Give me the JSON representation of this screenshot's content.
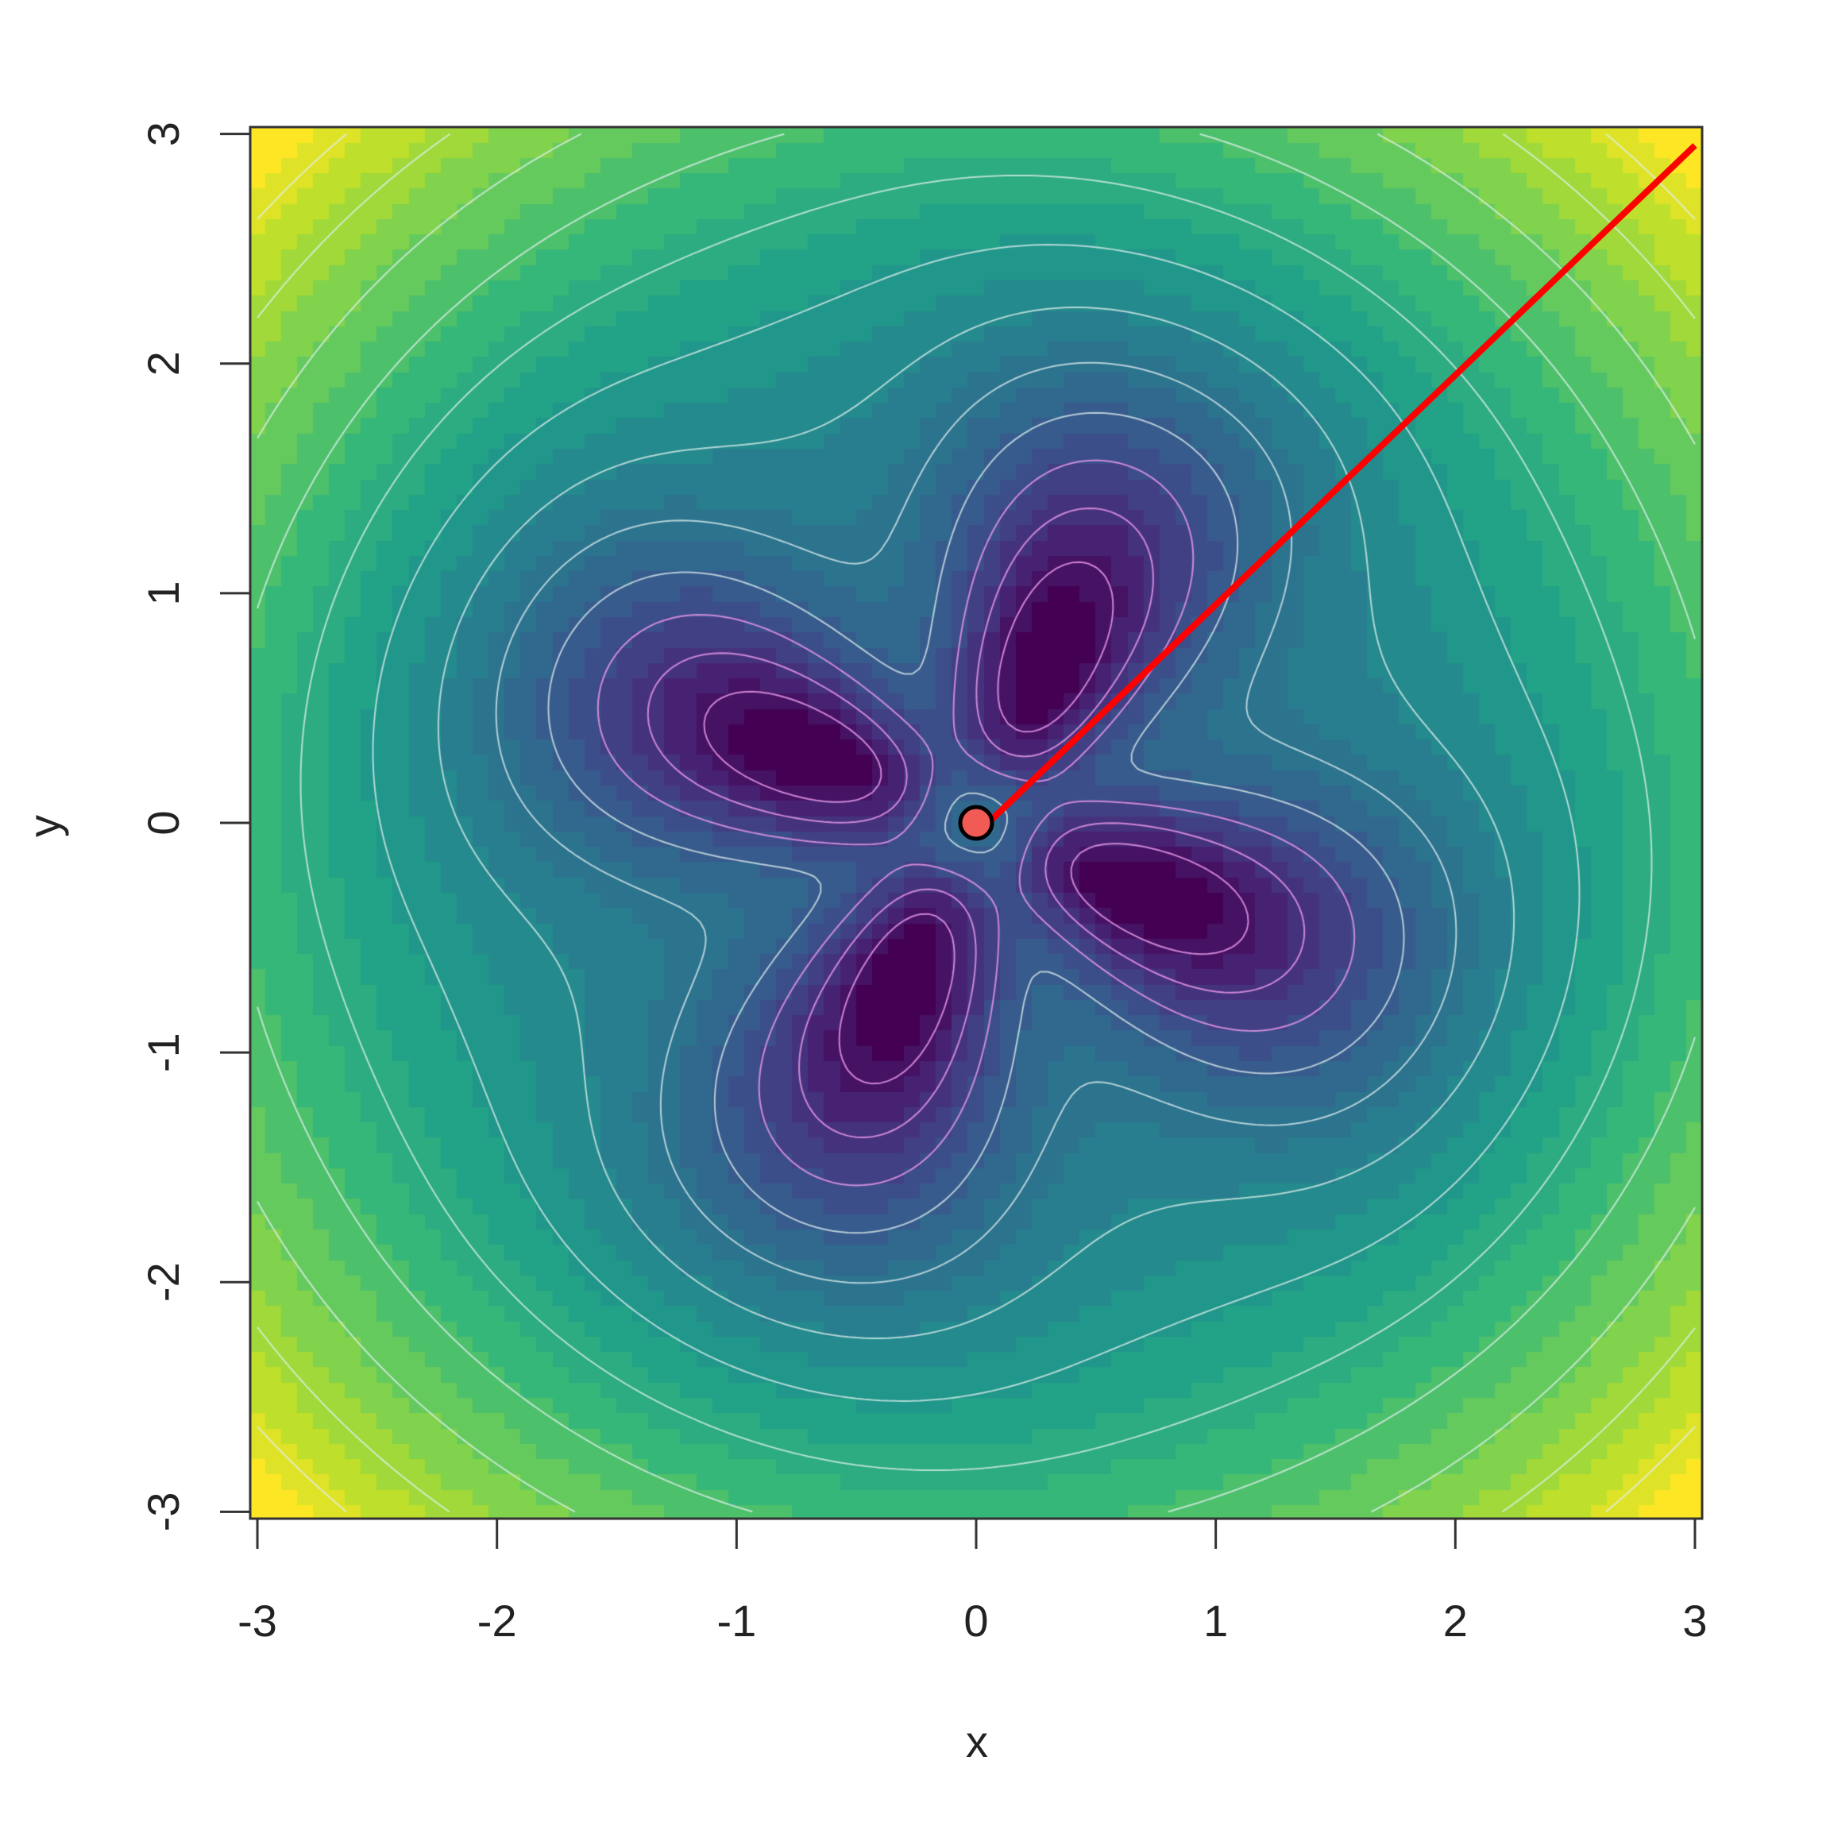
{
  "chart_data": {
    "type": "heatmap",
    "title": "",
    "xlabel": "x",
    "ylabel": "y",
    "xlim": [
      -3,
      3
    ],
    "ylim": [
      -3,
      3
    ],
    "xticks": [
      "-3",
      "-2",
      "-1",
      "0",
      "1",
      "2",
      "3"
    ],
    "yticks": [
      "-3",
      "-2",
      "-1",
      "0",
      "1",
      "2",
      "3"
    ],
    "colormap": "viridis",
    "contours": true,
    "contour_color": "#ffffff",
    "grid": false,
    "legend": "none",
    "point": {
      "x": 0,
      "y": 0,
      "fill": "#f25a55",
      "stroke": "#000000"
    },
    "line": {
      "from": [
        0.05,
        0.0
      ],
      "to": [
        3,
        2.95
      ],
      "color": "#ff0000"
    }
  }
}
